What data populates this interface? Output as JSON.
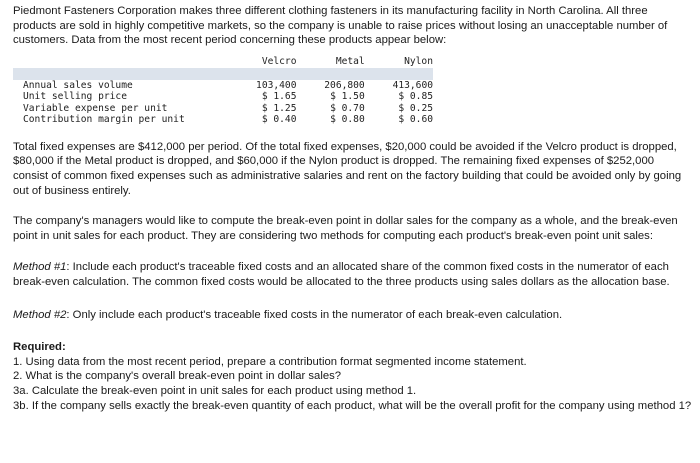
{
  "intro": "Piedmont Fasteners Corporation makes three different clothing fasteners in its manufacturing facility in North Carolina. All three products are sold in highly competitive markets, so the company is unable to raise prices without losing an unacceptable number of customers. Data from the most recent period concerning these products appear below:",
  "table": {
    "columns": [
      "Velcro",
      "Metal",
      "Nylon"
    ],
    "rows": [
      {
        "label": "Annual sales volume",
        "values": [
          "103,400",
          "206,800",
          "413,600"
        ]
      },
      {
        "label": "Unit selling price",
        "values": [
          "$ 1.65",
          "$ 1.50",
          "$ 0.85"
        ]
      },
      {
        "label": "Variable expense per unit",
        "values": [
          "$ 1.25",
          "$ 0.70",
          "$ 0.25"
        ]
      },
      {
        "label": "Contribution margin per unit",
        "values": [
          "$ 0.40",
          "$ 0.80",
          "$ 0.60"
        ]
      }
    ]
  },
  "para_fixed": "Total fixed expenses are $412,000 per period. Of the total fixed expenses, $20,000 could be avoided if the Velcro product is dropped, $80,000 if the Metal product is dropped, and $60,000 if the Nylon product is dropped. The remaining fixed expenses of $252,000 consist of common fixed expenses such as administrative salaries and rent on the factory building that could be avoided only by going out of business entirely.",
  "para_managers": "The company's managers would like to compute the break-even point in dollar sales for the company as a whole, and the break-even point in unit sales for each product. They are considering two methods for computing each product's break-even point unit sales:",
  "method1": {
    "label": "Method #1",
    "text": ": Include each product's traceable fixed costs and an allocated share of the common fixed costs in the numerator of each break-even calculation. The common fixed costs would be allocated to the three products using sales dollars as the allocation base."
  },
  "method2": {
    "label": "Method #2",
    "text": ": Only include each product's traceable fixed costs in the numerator of each break-even calculation."
  },
  "required": {
    "heading": "Required:",
    "items": [
      "1. Using data from the most recent period, prepare a contribution format segmented income statement.",
      "2. What is the company's overall break-even point in dollar sales?",
      "3a. Calculate the break-even point in unit sales for each product using method 1.",
      "3b. If the company sells exactly the break-even quantity of each product, what will be the overall profit for the company using method 1?"
    ]
  }
}
